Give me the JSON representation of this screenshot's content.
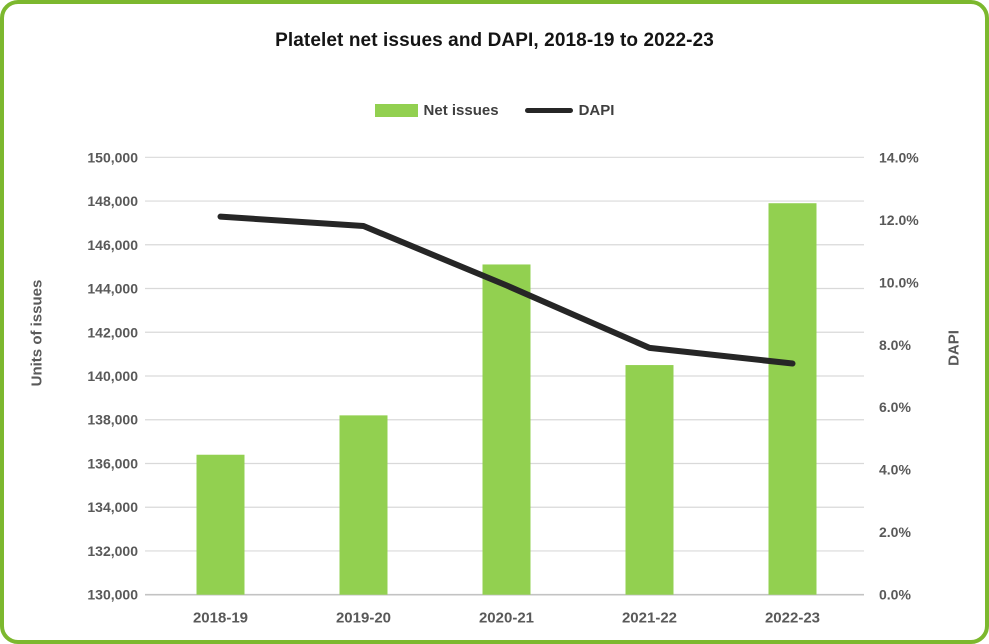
{
  "card": {
    "border_color": "#7cb82e"
  },
  "chart_data": {
    "type": "bar+line combo",
    "title": "Platelet net issues and DAPI, 2018-19 to 2022-23",
    "categories": [
      "2018-19",
      "2019-20",
      "2020-21",
      "2021-22",
      "2022-23"
    ],
    "series": [
      {
        "name": "Net issues",
        "type": "bar",
        "axis": "left",
        "color": "#92d050",
        "values": [
          136400,
          138200,
          145100,
          140500,
          147900
        ]
      },
      {
        "name": "DAPI",
        "type": "line",
        "axis": "right",
        "color": "#262626",
        "values": [
          12.1,
          11.8,
          9.9,
          7.9,
          7.4
        ],
        "unit": "%"
      }
    ],
    "left_axis": {
      "title": "Units of issues",
      "min": 130000,
      "max": 150000,
      "step": 2000,
      "tick_labels": [
        "130,000",
        "132,000",
        "134,000",
        "136,000",
        "138,000",
        "140,000",
        "142,000",
        "144,000",
        "146,000",
        "148,000",
        "150,000"
      ]
    },
    "right_axis": {
      "title": "DAPI",
      "min": 0,
      "max": 14,
      "step": 2,
      "tick_labels": [
        "0.0%",
        "2.0%",
        "4.0%",
        "6.0%",
        "8.0%",
        "10.0%",
        "12.0%",
        "14.0%"
      ]
    },
    "legend": {
      "position": "top-center"
    },
    "grid": "horizontal",
    "gridline_color": "#d9d9d9"
  }
}
